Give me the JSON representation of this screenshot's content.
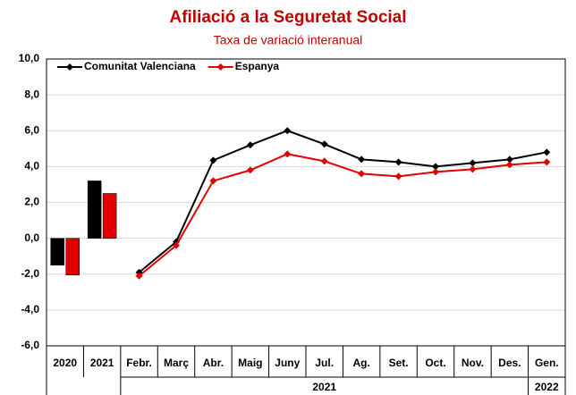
{
  "chart_data": {
    "type": "bar_line",
    "title": "Afiliació a la Seguretat Social",
    "subtitle": "Taxa de variació interanual",
    "bar_categories": [
      "2020",
      "2021"
    ],
    "categories": [
      "Febr.",
      "Març",
      "Abr.",
      "Maig",
      "Juny",
      "Jul.",
      "Ag.",
      "Set.",
      "Oct.",
      "Nov.",
      "Des.",
      "Gen."
    ],
    "x_groups": [
      {
        "label": "2021",
        "count": 11
      },
      {
        "label": "2022",
        "count": 1
      }
    ],
    "series": [
      {
        "name": "Comunitat Valenciana",
        "color": "#000000",
        "bar_values": [
          -1.5,
          3.2
        ],
        "values": [
          -1.9,
          -0.2,
          4.35,
          5.2,
          6.0,
          5.25,
          4.4,
          4.25,
          4.0,
          4.2,
          4.4,
          4.8
        ]
      },
      {
        "name": "Espanya",
        "color": "#e00000",
        "bar_values": [
          -2.05,
          2.5
        ],
        "values": [
          -2.1,
          -0.4,
          3.2,
          3.8,
          4.7,
          4.3,
          3.6,
          3.45,
          3.7,
          3.85,
          4.1,
          4.25
        ]
      }
    ],
    "ylim": [
      -6,
      10
    ],
    "yticks": [
      {
        "value": -6,
        "label": "-6,0"
      },
      {
        "value": -4,
        "label": "-4,0"
      },
      {
        "value": -2,
        "label": "-2,0"
      },
      {
        "value": 0,
        "label": "0,0"
      },
      {
        "value": 2,
        "label": "2,0"
      },
      {
        "value": 4,
        "label": "4,0"
      },
      {
        "value": 6,
        "label": "6,0"
      },
      {
        "value": 8,
        "label": "8,0"
      },
      {
        "value": 10,
        "label": "10,0"
      }
    ],
    "grid": true,
    "legend": "top-left"
  }
}
